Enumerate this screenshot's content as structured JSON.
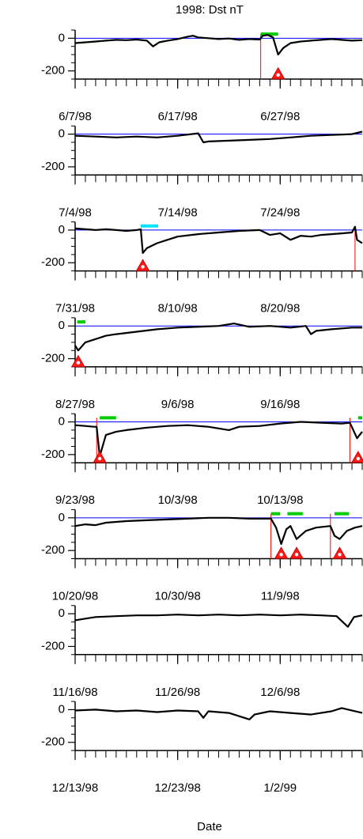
{
  "title": "1998: Dst  nT",
  "x_label": "Date",
  "chart_data": [
    {
      "type": "line",
      "color": "#000000",
      "xlim": [
        0,
        28
      ],
      "xminor_step": 1,
      "ylim": [
        -250,
        50
      ],
      "yticks": [
        0,
        -200
      ],
      "yminor": [
        -250,
        -150,
        -100,
        -50,
        50
      ],
      "xticks": [
        {
          "value": 0,
          "label": "6/7/98"
        },
        {
          "value": 10,
          "label": "6/17/98"
        },
        {
          "value": 20,
          "label": "6/27/98"
        }
      ],
      "x": [
        0,
        1,
        2,
        3,
        4,
        5,
        6,
        7,
        7.6,
        8.2,
        9,
        10,
        11,
        11.5,
        12,
        13,
        14,
        15,
        16,
        17,
        18,
        18.3,
        18.8,
        19.3,
        19.8,
        20.3,
        21,
        22,
        23,
        24,
        25,
        26,
        27,
        28
      ],
      "values": [
        -30,
        -25,
        -20,
        -15,
        -10,
        -12,
        -8,
        -15,
        -50,
        -25,
        -15,
        -5,
        10,
        15,
        5,
        0,
        -5,
        -2,
        -10,
        -5,
        -8,
        15,
        20,
        5,
        -100,
        -60,
        -30,
        -20,
        -15,
        -10,
        -5,
        -10,
        -15,
        -12
      ],
      "reference_line": {
        "value": 0,
        "color": "#0000ff"
      },
      "sudden_commencements": [
        18.1
      ],
      "storm_peaks": [
        19.8
      ],
      "storm_peak_level": -220,
      "bars": [
        {
          "x0": 18.1,
          "x1": 19.8,
          "color": "#00cc00"
        }
      ],
      "bar_level": 25
    },
    {
      "type": "line",
      "color": "#000000",
      "xlim": [
        0,
        28
      ],
      "xminor_step": 1,
      "ylim": [
        -250,
        50
      ],
      "yticks": [
        0,
        -200
      ],
      "yminor": [
        -250,
        -150,
        -100,
        -50,
        50
      ],
      "xticks": [
        {
          "value": 0,
          "label": "7/4/98"
        },
        {
          "value": 10,
          "label": "7/14/98"
        },
        {
          "value": 20,
          "label": "7/24/98"
        }
      ],
      "x": [
        0,
        2,
        4,
        6,
        8,
        10,
        12,
        12.5,
        13,
        15,
        17,
        19,
        21,
        23,
        25,
        27,
        28
      ],
      "values": [
        -10,
        -15,
        -20,
        -15,
        -20,
        -10,
        5,
        -50,
        -45,
        -40,
        -35,
        -30,
        -20,
        -10,
        -5,
        0,
        15
      ],
      "reference_line": {
        "value": 0,
        "color": "#0000ff"
      }
    },
    {
      "type": "line",
      "color": "#000000",
      "xlim": [
        0,
        28
      ],
      "xminor_step": 1,
      "ylim": [
        -250,
        50
      ],
      "yticks": [
        0,
        -200
      ],
      "yminor": [
        -250,
        -150,
        -100,
        -50,
        50
      ],
      "xticks": [
        {
          "value": 0,
          "label": "7/31/98"
        },
        {
          "value": 10,
          "label": "8/10/98"
        },
        {
          "value": 20,
          "label": "8/20/98"
        }
      ],
      "x": [
        0,
        1,
        2,
        3,
        4,
        5,
        6,
        6.4,
        6.6,
        7,
        8,
        9,
        10,
        12,
        14,
        16,
        18,
        19,
        20,
        21,
        22,
        23,
        24,
        25,
        26,
        27,
        27.3,
        27.5,
        28
      ],
      "values": [
        10,
        5,
        0,
        5,
        0,
        -5,
        0,
        5,
        -140,
        -110,
        -80,
        -60,
        -40,
        -25,
        -15,
        -5,
        0,
        -30,
        -20,
        -60,
        -35,
        -40,
        -30,
        -25,
        -20,
        -15,
        20,
        -60,
        -80
      ],
      "reference_line": {
        "value": 0,
        "color": "#0000ff"
      },
      "sudden_commencements": [
        27.3
      ],
      "storm_peaks": [
        6.6
      ],
      "storm_peak_level": -220,
      "bars": [
        {
          "x0": 6.4,
          "x1": 8.1,
          "color": "#00e5ff"
        }
      ],
      "bar_level": 25
    },
    {
      "type": "line",
      "color": "#000000",
      "xlim": [
        0,
        28
      ],
      "xminor_step": 1,
      "ylim": [
        -250,
        50
      ],
      "yticks": [
        0,
        -200
      ],
      "yminor": [
        -250,
        -150,
        -100,
        -50,
        50
      ],
      "xticks": [
        {
          "value": 0,
          "label": "8/27/98"
        },
        {
          "value": 10,
          "label": "9/6/98"
        },
        {
          "value": 20,
          "label": "9/16/98"
        }
      ],
      "x": [
        0,
        0.3,
        1,
        2,
        3,
        4,
        6,
        8,
        10,
        12,
        14,
        15.5,
        17,
        19,
        21,
        22.5,
        23,
        23.5,
        25,
        27,
        28
      ],
      "values": [
        -120,
        -150,
        -100,
        -80,
        -60,
        -50,
        -35,
        -20,
        -10,
        -5,
        0,
        15,
        -5,
        0,
        -10,
        0,
        -50,
        -30,
        -20,
        -10,
        -10
      ],
      "reference_line": {
        "value": 0,
        "color": "#0000ff"
      },
      "storm_peaks": [
        0.3
      ],
      "storm_peak_level": -220,
      "bars": [
        {
          "x0": 0.2,
          "x1": 1.0,
          "color": "#00cc00"
        }
      ],
      "bar_level": 25
    },
    {
      "type": "line",
      "color": "#000000",
      "xlim": [
        0,
        28
      ],
      "xminor_step": 1,
      "ylim": [
        -250,
        50
      ],
      "yticks": [
        0,
        -200
      ],
      "yminor": [
        -250,
        -150,
        -100,
        -50,
        50
      ],
      "xticks": [
        {
          "value": 0,
          "label": "9/23/98"
        },
        {
          "value": 10,
          "label": "10/3/98"
        },
        {
          "value": 20,
          "label": "10/13/98"
        }
      ],
      "x": [
        0,
        1,
        1.8,
        2.1,
        2.4,
        3,
        4,
        5,
        7,
        9,
        11,
        13,
        15,
        16,
        18,
        20,
        22,
        24,
        26,
        26.8,
        27.5,
        28
      ],
      "values": [
        -20,
        -25,
        -30,
        -30,
        -210,
        -80,
        -60,
        -50,
        -35,
        -25,
        -20,
        -30,
        -50,
        -30,
        -25,
        -10,
        0,
        -5,
        -10,
        -5,
        -100,
        -60
      ],
      "reference_line": {
        "value": 0,
        "color": "#0000ff"
      },
      "sudden_commencements": [
        2.1,
        26.8
      ],
      "storm_peaks": [
        2.4,
        27.6
      ],
      "storm_peak_level": -220,
      "bars": [
        {
          "x0": 2.4,
          "x1": 4.0,
          "color": "#00cc00"
        },
        {
          "x0": 27.6,
          "x1": 28,
          "color": "#00cc00"
        }
      ],
      "bar_level": 25
    },
    {
      "type": "line",
      "color": "#000000",
      "xlim": [
        0,
        28
      ],
      "xminor_step": 1,
      "ylim": [
        -250,
        50
      ],
      "yticks": [
        0,
        -200
      ],
      "yminor": [
        -250,
        -150,
        -100,
        -50,
        50
      ],
      "xticks": [
        {
          "value": 0,
          "label": "10/20/98"
        },
        {
          "value": 10,
          "label": "10/30/98"
        },
        {
          "value": 20,
          "label": "11/9/98"
        }
      ],
      "x": [
        0,
        1,
        2,
        3,
        5,
        7,
        9,
        11,
        13,
        15,
        17,
        19.1,
        19.6,
        20.1,
        20.6,
        21,
        21.6,
        22.5,
        23.5,
        24.9,
        25.3,
        25.8,
        26.5,
        27.3,
        28
      ],
      "values": [
        -50,
        -40,
        -45,
        -30,
        -20,
        -15,
        -10,
        -5,
        0,
        0,
        -5,
        -5,
        -60,
        -160,
        -70,
        -50,
        -130,
        -80,
        -60,
        -50,
        -110,
        -130,
        -80,
        -60,
        -50
      ],
      "reference_line": {
        "value": 0,
        "color": "#0000ff"
      },
      "sudden_commencements": [
        19.1,
        24.9
      ],
      "storm_peaks": [
        20.1,
        21.6,
        25.8
      ],
      "storm_peak_level": -220,
      "bars": [
        {
          "x0": 19.1,
          "x1": 20.0,
          "color": "#00cc00"
        },
        {
          "x0": 20.7,
          "x1": 22.2,
          "color": "#00cc00"
        },
        {
          "x0": 25.3,
          "x1": 26.7,
          "color": "#00cc00"
        }
      ],
      "bar_level": 25
    },
    {
      "type": "line",
      "color": "#000000",
      "xlim": [
        0,
        28
      ],
      "xminor_step": 1,
      "ylim": [
        -250,
        50
      ],
      "yticks": [
        0,
        -200
      ],
      "yminor": [
        -250,
        -150,
        -100,
        -50,
        50
      ],
      "xticks": [
        {
          "value": 0,
          "label": "11/16/98"
        },
        {
          "value": 10,
          "label": "11/26/98"
        },
        {
          "value": 20,
          "label": "12/6/98"
        }
      ],
      "x": [
        0,
        1,
        2,
        4,
        6,
        8,
        10,
        12,
        14,
        16,
        18,
        20,
        22,
        24,
        25.5,
        26.6,
        27.2,
        28
      ],
      "values": [
        -40,
        -30,
        -20,
        -15,
        -10,
        -10,
        -5,
        -10,
        -5,
        -10,
        -5,
        -10,
        -5,
        -10,
        -15,
        -80,
        -20,
        -10
      ]
    },
    {
      "type": "line",
      "color": "#000000",
      "xlim": [
        0,
        28
      ],
      "xminor_step": 1,
      "ylim": [
        -250,
        50
      ],
      "yticks": [
        0,
        -200
      ],
      "yminor": [
        -250,
        -150,
        -100,
        -50,
        50
      ],
      "xticks": [
        {
          "value": 0,
          "label": "12/13/98"
        },
        {
          "value": 10,
          "label": "12/23/98"
        },
        {
          "value": 20,
          "label": "1/2/99"
        }
      ],
      "x": [
        0,
        2,
        4,
        6,
        8,
        10,
        12,
        12.5,
        13,
        15,
        17,
        17.5,
        19,
        21,
        23,
        25,
        26,
        28
      ],
      "values": [
        -5,
        0,
        -10,
        -5,
        -15,
        -5,
        -10,
        -50,
        -10,
        -20,
        -60,
        -30,
        -10,
        -20,
        -30,
        -10,
        10,
        -20
      ]
    }
  ]
}
